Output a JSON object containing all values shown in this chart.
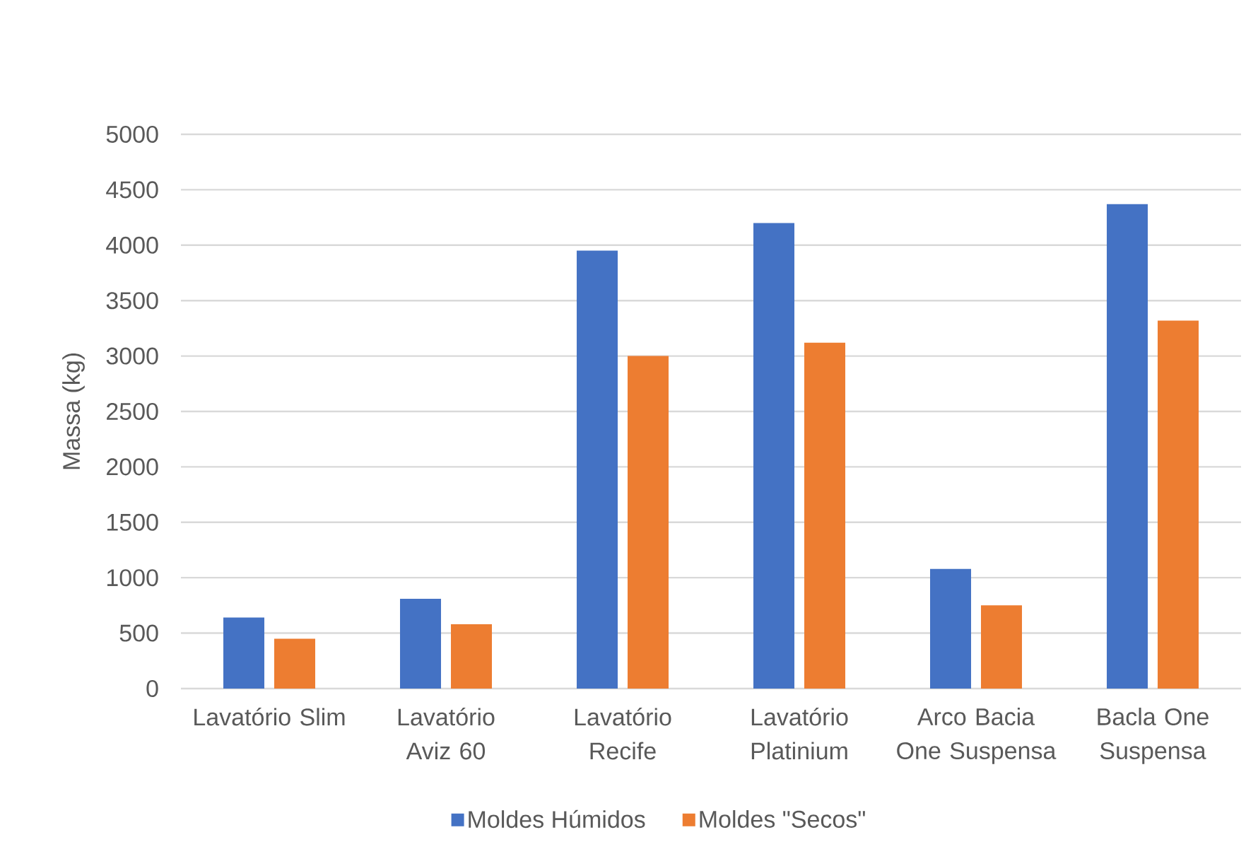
{
  "chart_data": {
    "type": "bar",
    "ylabel": "Massa (kg)",
    "categories": [
      "Lavatório Slim",
      "Lavatório Aviz 60",
      "Lavatório Recife",
      "Lavatório Platinium",
      "Arco Bacia One Suspensa",
      "Bacla One Suspensa"
    ],
    "series": [
      {
        "name": "Moldes Húmidos",
        "color": "#4472c4",
        "values": [
          640,
          810,
          3950,
          4200,
          1080,
          4370
        ]
      },
      {
        "name": "Moldes \"Secos\"",
        "color": "#ed7d31",
        "values": [
          450,
          580,
          3000,
          3120,
          750,
          3320
        ]
      }
    ],
    "ylim": [
      0,
      5000
    ],
    "yticks": [
      0,
      500,
      1000,
      1500,
      2000,
      2500,
      3000,
      3500,
      4000,
      4500,
      5000
    ],
    "grid": "y",
    "legend": "bottom"
  }
}
